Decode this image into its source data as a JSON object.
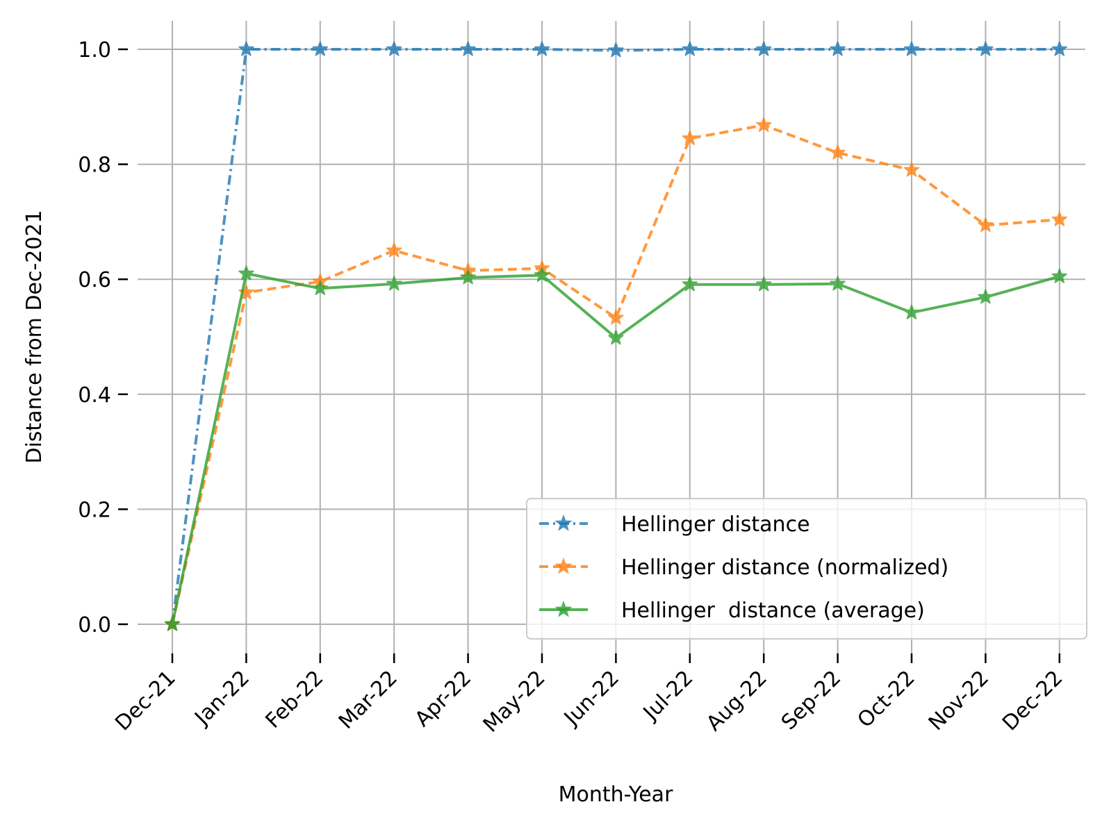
{
  "chart_data": {
    "type": "line",
    "title": "",
    "xlabel": "Month-Year",
    "ylabel": "Distance from Dec-2021",
    "categories": [
      "Dec-21",
      "Jan-22",
      "Feb-22",
      "Mar-22",
      "Apr-22",
      "May-22",
      "Jun-22",
      "Jul-22",
      "Aug-22",
      "Sep-22",
      "Oct-22",
      "Nov-22",
      "Dec-22"
    ],
    "ylim": [
      -0.05,
      1.05
    ],
    "yticks": [
      0.0,
      0.2,
      0.4,
      0.6,
      0.8,
      1.0
    ],
    "ytick_labels": [
      "0.0",
      "0.2",
      "0.4",
      "0.6",
      "0.8",
      "1.0"
    ],
    "grid": true,
    "legend_position": "lower-right",
    "series": [
      {
        "name": "Hellinger distance",
        "color": "#1f77b4",
        "line_style": "dash-dot",
        "marker": "star",
        "values": [
          0.0,
          1.0,
          1.0,
          1.0,
          1.0,
          1.0,
          0.998,
          1.0,
          1.0,
          1.0,
          1.0,
          1.0,
          1.0
        ]
      },
      {
        "name": "Hellinger distance (normalized)",
        "color": "#ff7f0e",
        "line_style": "dashed",
        "marker": "star",
        "values": [
          0.0,
          0.577,
          0.596,
          0.65,
          0.615,
          0.619,
          0.533,
          0.845,
          0.868,
          0.82,
          0.79,
          0.694,
          0.704
        ]
      },
      {
        "name": "Hellinger  distance (average)",
        "color": "#2ca02c",
        "line_style": "solid",
        "marker": "star",
        "values": [
          0.0,
          0.61,
          0.584,
          0.592,
          0.603,
          0.607,
          0.498,
          0.591,
          0.591,
          0.592,
          0.542,
          0.569,
          0.605
        ]
      }
    ]
  }
}
